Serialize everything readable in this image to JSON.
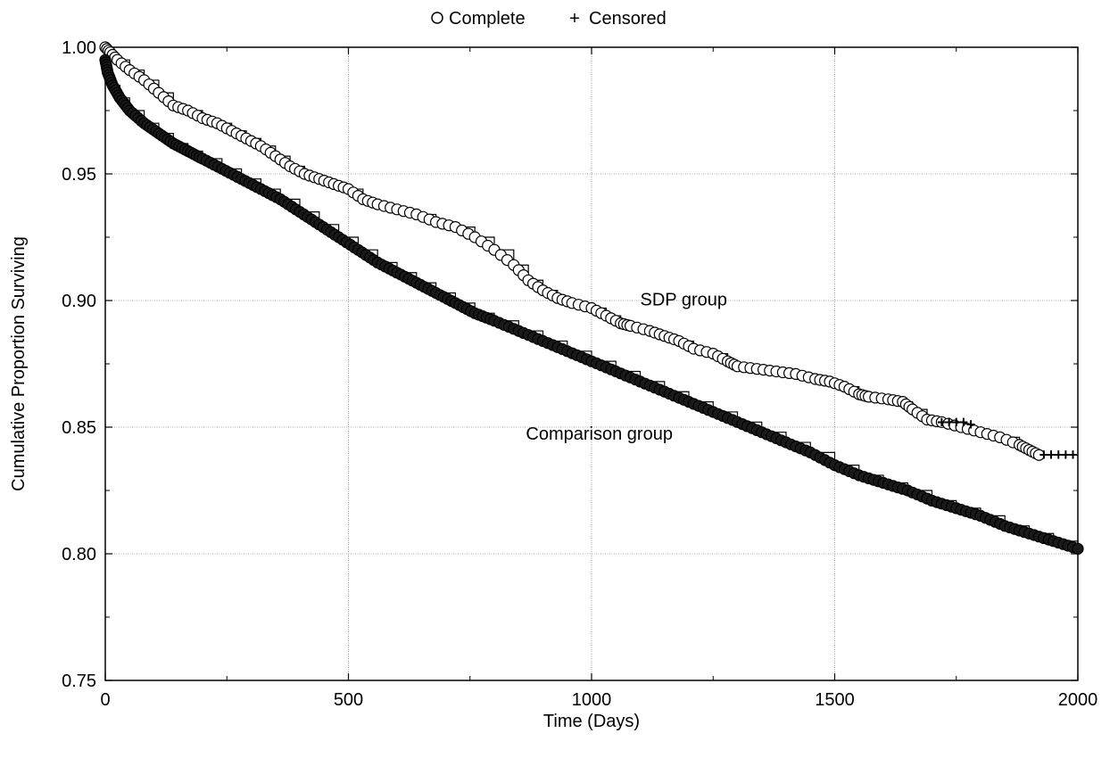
{
  "chart_data": {
    "type": "scatter",
    "xlabel": "Time (Days)",
    "ylabel": "Cumulative Proportion Surviving",
    "xlim": [
      0,
      2000
    ],
    "ylim": [
      0.75,
      1.0
    ],
    "xticks": [
      "0",
      "500",
      "1000",
      "1500",
      "2000"
    ],
    "yticks": [
      "0.75",
      "0.80",
      "0.85",
      "0.90",
      "0.95",
      "1.00"
    ],
    "grid": true,
    "legend": {
      "placement": "top-center",
      "complete_label": "Complete",
      "censored_label": "Censored"
    },
    "annotations": [
      {
        "text": "SDP group",
        "x": 1100,
        "y": 0.898
      },
      {
        "text": "Comparison group",
        "x": 865,
        "y": 0.845
      }
    ],
    "series": [
      {
        "name": "SDP group",
        "x": [
          0,
          10,
          25,
          50,
          80,
          110,
          140,
          170,
          200,
          230,
          260,
          290,
          320,
          350,
          380,
          410,
          440,
          470,
          500,
          530,
          560,
          600,
          640,
          680,
          720,
          760,
          800,
          840,
          870,
          900,
          930,
          960,
          1000,
          1030,
          1060,
          1080,
          1120,
          1150,
          1180,
          1210,
          1250,
          1280,
          1300,
          1340,
          1380,
          1420,
          1460,
          1490,
          1520,
          1550,
          1570,
          1610,
          1640,
          1660,
          1690,
          1720,
          1760,
          1800,
          1840,
          1880,
          1900,
          1920
        ],
        "y": [
          1.0,
          0.998,
          0.995,
          0.991,
          0.987,
          0.982,
          0.977,
          0.975,
          0.972,
          0.97,
          0.967,
          0.964,
          0.961,
          0.957,
          0.953,
          0.95,
          0.948,
          0.946,
          0.944,
          0.94,
          0.938,
          0.936,
          0.934,
          0.931,
          0.929,
          0.925,
          0.92,
          0.914,
          0.908,
          0.904,
          0.901,
          0.899,
          0.897,
          0.894,
          0.891,
          0.89,
          0.888,
          0.886,
          0.884,
          0.881,
          0.879,
          0.876,
          0.874,
          0.873,
          0.872,
          0.871,
          0.869,
          0.868,
          0.866,
          0.863,
          0.862,
          0.861,
          0.86,
          0.857,
          0.853,
          0.852,
          0.85,
          0.848,
          0.846,
          0.843,
          0.841,
          0.839
        ],
        "censored_x": [
          1720,
          1735,
          1750,
          1765,
          1780,
          1930,
          1945,
          1960,
          1975,
          1990
        ],
        "censored_y": [
          0.852,
          0.852,
          0.852,
          0.852,
          0.851,
          0.839,
          0.839,
          0.839,
          0.839,
          0.839
        ],
        "end_x": 2000
      },
      {
        "name": "Comparison group",
        "x": [
          0,
          5,
          15,
          30,
          50,
          80,
          110,
          140,
          170,
          200,
          240,
          280,
          320,
          360,
          400,
          440,
          480,
          520,
          560,
          600,
          640,
          680,
          720,
          760,
          800,
          850,
          900,
          950,
          1000,
          1050,
          1100,
          1150,
          1200,
          1250,
          1300,
          1350,
          1400,
          1450,
          1500,
          1550,
          1600,
          1650,
          1700,
          1750,
          1800,
          1850,
          1900,
          1950,
          2000
        ],
        "y": [
          0.995,
          0.99,
          0.985,
          0.98,
          0.975,
          0.97,
          0.966,
          0.962,
          0.959,
          0.956,
          0.952,
          0.948,
          0.944,
          0.94,
          0.935,
          0.93,
          0.925,
          0.92,
          0.915,
          0.911,
          0.907,
          0.903,
          0.899,
          0.895,
          0.892,
          0.888,
          0.884,
          0.88,
          0.876,
          0.872,
          0.868,
          0.864,
          0.86,
          0.856,
          0.852,
          0.848,
          0.844,
          0.84,
          0.835,
          0.831,
          0.828,
          0.825,
          0.821,
          0.818,
          0.815,
          0.811,
          0.808,
          0.805,
          0.802
        ],
        "censored_x": [],
        "censored_y": [],
        "end_x": 2000
      }
    ]
  }
}
